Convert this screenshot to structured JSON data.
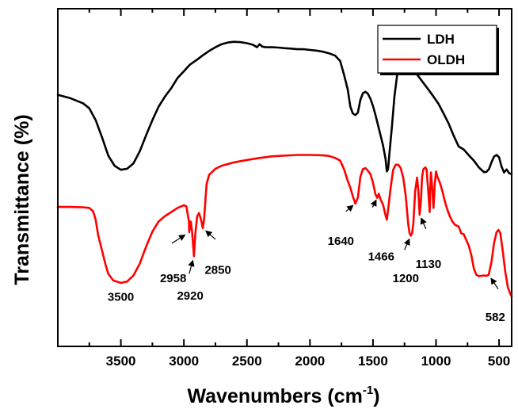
{
  "chart_data": {
    "type": "line",
    "title": "",
    "xlabel": "Wavenumbers (cm",
    "xlabel_sup": "-1",
    "xlabel_close": ")",
    "ylabel": "Transmittance (%)",
    "xlim": [
      4000,
      400
    ],
    "ylim": [
      0,
      100
    ],
    "x_reversed": true,
    "y_tick_labels": false,
    "x_ticks": [
      3500,
      3000,
      2500,
      2000,
      1500,
      1000,
      500
    ],
    "x_tick_labels": [
      "3500",
      "3000",
      "2500",
      "2000",
      "1500",
      "1000",
      "500"
    ],
    "grid": false,
    "legend_position": "top-right",
    "series": [
      {
        "name": "LDH",
        "color": "#000000",
        "points": [
          [
            4000,
            74.5
          ],
          [
            3900,
            73.5
          ],
          [
            3800,
            72
          ],
          [
            3750,
            70.5
          ],
          [
            3700,
            67
          ],
          [
            3650,
            62
          ],
          [
            3600,
            56.5
          ],
          [
            3550,
            53.5
          ],
          [
            3500,
            52.3
          ],
          [
            3450,
            52.6
          ],
          [
            3400,
            54.2
          ],
          [
            3350,
            57.8
          ],
          [
            3300,
            62.5
          ],
          [
            3250,
            67
          ],
          [
            3200,
            71
          ],
          [
            3150,
            74
          ],
          [
            3100,
            76.5
          ],
          [
            3050,
            79.5
          ],
          [
            3000,
            81.5
          ],
          [
            2950,
            83.5
          ],
          [
            2900,
            84.8
          ],
          [
            2850,
            86.2
          ],
          [
            2800,
            87.5
          ],
          [
            2750,
            88.6
          ],
          [
            2700,
            89.5
          ],
          [
            2650,
            90
          ],
          [
            2600,
            90.2
          ],
          [
            2550,
            90.1
          ],
          [
            2500,
            89.8
          ],
          [
            2450,
            89.3
          ],
          [
            2420,
            88.6
          ],
          [
            2400,
            89.5
          ],
          [
            2380,
            88.8
          ],
          [
            2350,
            88.6
          ],
          [
            2300,
            88.6
          ],
          [
            2250,
            88.5
          ],
          [
            2200,
            88.3
          ],
          [
            2150,
            88.2
          ],
          [
            2100,
            88
          ],
          [
            2050,
            88
          ],
          [
            2000,
            87.8
          ],
          [
            1950,
            87.6
          ],
          [
            1900,
            87.3
          ],
          [
            1850,
            86.8
          ],
          [
            1800,
            86.1
          ],
          [
            1760,
            84.5
          ],
          [
            1730,
            80.5
          ],
          [
            1700,
            76
          ],
          [
            1680,
            71
          ],
          [
            1660,
            69
          ],
          [
            1640,
            68.5
          ],
          [
            1620,
            69.2
          ],
          [
            1600,
            73
          ],
          [
            1580,
            75
          ],
          [
            1560,
            75.4
          ],
          [
            1540,
            74.8
          ],
          [
            1520,
            73.3
          ],
          [
            1500,
            71.2
          ],
          [
            1480,
            68.5
          ],
          [
            1460,
            65.5
          ],
          [
            1440,
            62.5
          ],
          [
            1420,
            59.5
          ],
          [
            1400,
            55.5
          ],
          [
            1390,
            51.8
          ],
          [
            1380,
            52.5
          ],
          [
            1370,
            57
          ],
          [
            1350,
            65
          ],
          [
            1330,
            74
          ],
          [
            1310,
            80
          ],
          [
            1290,
            83
          ],
          [
            1270,
            83.9
          ],
          [
            1250,
            84
          ],
          [
            1230,
            83.5
          ],
          [
            1200,
            82.6
          ],
          [
            1170,
            81.4
          ],
          [
            1140,
            80
          ],
          [
            1100,
            78
          ],
          [
            1060,
            76
          ],
          [
            1020,
            74
          ],
          [
            980,
            71.8
          ],
          [
            940,
            69
          ],
          [
            900,
            66
          ],
          [
            860,
            62.4
          ],
          [
            820,
            59.2
          ],
          [
            780,
            58.3
          ],
          [
            740,
            56.6
          ],
          [
            700,
            55
          ],
          [
            660,
            53
          ],
          [
            620,
            51.6
          ],
          [
            600,
            51.7
          ],
          [
            580,
            52.5
          ],
          [
            560,
            54.5
          ],
          [
            540,
            56.2
          ],
          [
            520,
            56.7
          ],
          [
            500,
            56
          ],
          [
            480,
            53.2
          ],
          [
            460,
            51.5
          ],
          [
            440,
            52.4
          ],
          [
            420,
            51.3
          ],
          [
            400,
            51
          ]
        ]
      },
      {
        "name": "OLDH",
        "color": "#ff0000",
        "points": [
          [
            4000,
            41.3
          ],
          [
            3900,
            41.3
          ],
          [
            3800,
            41.2
          ],
          [
            3750,
            41
          ],
          [
            3720,
            40
          ],
          [
            3700,
            37.5
          ],
          [
            3680,
            33
          ],
          [
            3650,
            28.5
          ],
          [
            3620,
            24
          ],
          [
            3600,
            21.5
          ],
          [
            3560,
            19.5
          ],
          [
            3500,
            18.8
          ],
          [
            3450,
            19.2
          ],
          [
            3400,
            21
          ],
          [
            3350,
            24.5
          ],
          [
            3300,
            29.5
          ],
          [
            3250,
            34
          ],
          [
            3200,
            37
          ],
          [
            3150,
            38.6
          ],
          [
            3100,
            39.8
          ],
          [
            3050,
            41
          ],
          [
            3000,
            41.8
          ],
          [
            2980,
            41.5
          ],
          [
            2960,
            37
          ],
          [
            2958,
            33.8
          ],
          [
            2945,
            37
          ],
          [
            2935,
            34
          ],
          [
            2920,
            26.7
          ],
          [
            2910,
            33
          ],
          [
            2895,
            38.5
          ],
          [
            2880,
            39.5
          ],
          [
            2860,
            37
          ],
          [
            2850,
            35
          ],
          [
            2840,
            37.5
          ],
          [
            2820,
            48
          ],
          [
            2800,
            50.8
          ],
          [
            2750,
            52.6
          ],
          [
            2700,
            53.5
          ],
          [
            2600,
            54.5
          ],
          [
            2500,
            55.2
          ],
          [
            2400,
            55.8
          ],
          [
            2300,
            56.3
          ],
          [
            2200,
            56.5
          ],
          [
            2100,
            56.7
          ],
          [
            2000,
            56.7
          ],
          [
            1900,
            56.6
          ],
          [
            1850,
            56.4
          ],
          [
            1800,
            55.8
          ],
          [
            1760,
            55
          ],
          [
            1730,
            52.5
          ],
          [
            1700,
            49
          ],
          [
            1680,
            47
          ],
          [
            1660,
            44.5
          ],
          [
            1640,
            42.3
          ],
          [
            1620,
            44
          ],
          [
            1600,
            50.2
          ],
          [
            1580,
            52.5
          ],
          [
            1560,
            52.8
          ],
          [
            1540,
            52
          ],
          [
            1520,
            51
          ],
          [
            1500,
            48.5
          ],
          [
            1480,
            45
          ],
          [
            1466,
            44
          ],
          [
            1455,
            45.2
          ],
          [
            1440,
            43.5
          ],
          [
            1420,
            42
          ],
          [
            1400,
            38.8
          ],
          [
            1390,
            37.5
          ],
          [
            1380,
            40.5
          ],
          [
            1360,
            47
          ],
          [
            1340,
            52.3
          ],
          [
            1320,
            53.8
          ],
          [
            1300,
            53.8
          ],
          [
            1280,
            52.8
          ],
          [
            1260,
            50
          ],
          [
            1240,
            44.5
          ],
          [
            1220,
            36
          ],
          [
            1210,
            33.5
          ],
          [
            1200,
            32.8
          ],
          [
            1190,
            33.5
          ],
          [
            1180,
            36.5
          ],
          [
            1165,
            46
          ],
          [
            1150,
            50
          ],
          [
            1140,
            46
          ],
          [
            1130,
            39
          ],
          [
            1120,
            43
          ],
          [
            1110,
            50.5
          ],
          [
            1100,
            52.5
          ],
          [
            1085,
            53
          ],
          [
            1075,
            52.4
          ],
          [
            1060,
            45
          ],
          [
            1050,
            39.8
          ],
          [
            1045,
            47
          ],
          [
            1040,
            51.5
          ],
          [
            1030,
            47
          ],
          [
            1020,
            41
          ],
          [
            1010,
            48
          ],
          [
            1000,
            51.8
          ],
          [
            990,
            50.3
          ],
          [
            970,
            48.5
          ],
          [
            950,
            46
          ],
          [
            930,
            43
          ],
          [
            910,
            40.5
          ],
          [
            890,
            38.5
          ],
          [
            870,
            37
          ],
          [
            850,
            36
          ],
          [
            820,
            35.5
          ],
          [
            800,
            33.5
          ],
          [
            780,
            33.2
          ],
          [
            760,
            31.5
          ],
          [
            740,
            29.8
          ],
          [
            720,
            27
          ],
          [
            700,
            23
          ],
          [
            680,
            21.2
          ],
          [
            660,
            20.8
          ],
          [
            640,
            20.9
          ],
          [
            620,
            21
          ],
          [
            600,
            20.9
          ],
          [
            582,
            21.2
          ],
          [
            560,
            25
          ],
          [
            540,
            30.5
          ],
          [
            520,
            33.8
          ],
          [
            505,
            34.5
          ],
          [
            490,
            33.5
          ],
          [
            470,
            28
          ],
          [
            450,
            22
          ],
          [
            430,
            17.5
          ],
          [
            410,
            15.5
          ],
          [
            400,
            14.8
          ]
        ]
      }
    ],
    "annotations": [
      {
        "label": "3500",
        "x": 3500,
        "y": 18.8
      },
      {
        "label": "2958",
        "x": 2958,
        "y": 33.8
      },
      {
        "label": "2920",
        "x": 2920,
        "y": 26.7
      },
      {
        "label": "2850",
        "x": 2850,
        "y": 35
      },
      {
        "label": "1640",
        "x": 1640,
        "y": 42.3
      },
      {
        "label": "1466",
        "x": 1466,
        "y": 44
      },
      {
        "label": "1200",
        "x": 1200,
        "y": 32.8
      },
      {
        "label": "1130",
        "x": 1130,
        "y": 39
      },
      {
        "label": "582",
        "x": 582,
        "y": 21.2
      }
    ]
  }
}
